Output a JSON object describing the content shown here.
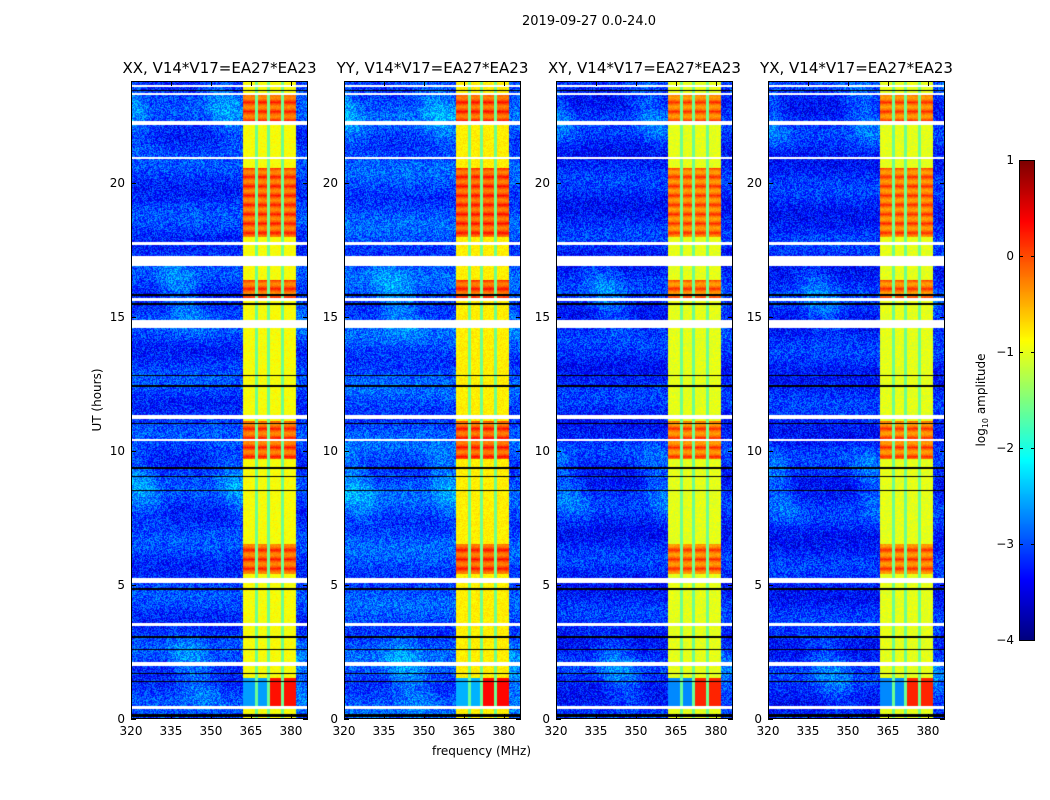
{
  "chart_data": {
    "type": "heatmap",
    "suptitle": "2019-09-27 0.0-24.0",
    "xlabel": "frequency (MHz)",
    "ylabel": "UT (hours)",
    "xlim": [
      320,
      386.4
    ],
    "ylim": [
      0,
      23.8
    ],
    "xticks": [
      320,
      335,
      350,
      365,
      380
    ],
    "yticks": [
      0,
      5,
      10,
      15,
      20
    ],
    "colormap": "jet",
    "colorbar": {
      "label_main": "log",
      "label_sub": "10",
      "label_rest": " amplitude",
      "range": [
        -4,
        1
      ],
      "ticks": [
        "1",
        "0",
        "−1",
        "−2",
        "−3",
        "−4"
      ],
      "tick_values": [
        1,
        0,
        -1,
        -2,
        -3,
        -4
      ]
    },
    "panels": [
      {
        "title": "XX, V14*V17=EA27*EA23",
        "band_level": -0.9,
        "burst_level": 0.3,
        "background_level": -3.1
      },
      {
        "title": "YY, V14*V17=EA27*EA23",
        "band_level": -0.8,
        "burst_level": 0.35,
        "background_level": -3.0
      },
      {
        "title": "XY, V14*V17=EA27*EA23",
        "band_level": -1.0,
        "burst_level": 0.2,
        "background_level": -3.2
      },
      {
        "title": "YX, V14*V17=EA27*EA23",
        "band_level": -1.0,
        "burst_level": 0.2,
        "background_level": -3.2
      }
    ],
    "band_mhz": [
      362,
      382.3
    ],
    "band_gaps_mhz": [
      367.3,
      371.8,
      377.0
    ],
    "burst_hours": [
      [
        22.2,
        23.4
      ],
      [
        18.0,
        20.6
      ],
      [
        15.7,
        16.4
      ],
      [
        9.7,
        11.1
      ],
      [
        5.4,
        6.5
      ]
    ],
    "low_burst": {
      "hours": [
        0.4,
        1.5
      ],
      "mhz": [
        371.5,
        382.3
      ]
    },
    "flagged_white_hours": [
      [
        0.35,
        0.45
      ],
      [
        1.95,
        2.1
      ],
      [
        3.45,
        3.55
      ],
      [
        5.05,
        5.25
      ],
      [
        10.35,
        10.45
      ],
      [
        11.2,
        11.35
      ],
      [
        14.6,
        14.9
      ],
      [
        15.6,
        15.7
      ],
      [
        16.9,
        17.3
      ],
      [
        17.7,
        17.8
      ],
      [
        20.9,
        21.0
      ],
      [
        22.2,
        22.35
      ],
      [
        23.3,
        23.4
      ],
      [
        23.6,
        23.7
      ]
    ],
    "flagged_black_hours": [
      [
        0.05,
        0.15
      ],
      [
        1.35,
        1.4
      ],
      [
        1.65,
        1.7
      ],
      [
        2.55,
        2.6
      ],
      [
        3.0,
        3.05
      ],
      [
        4.8,
        4.88
      ],
      [
        8.5,
        8.55
      ],
      [
        9.0,
        9.05
      ],
      [
        9.3,
        9.38
      ],
      [
        11.0,
        11.05
      ],
      [
        12.4,
        12.45
      ],
      [
        12.8,
        12.85
      ],
      [
        15.45,
        15.52
      ],
      [
        15.8,
        15.85
      ],
      [
        23.45,
        23.5
      ]
    ]
  }
}
